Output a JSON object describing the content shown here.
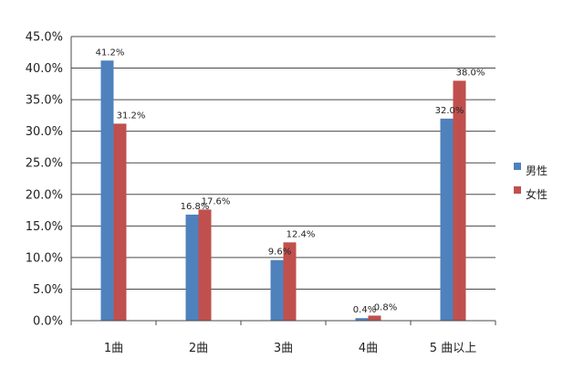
{
  "chart_data": {
    "type": "bar",
    "categories": [
      "1曲",
      "2曲",
      "3曲",
      "4曲",
      "5 曲以上"
    ],
    "series": [
      {
        "name": "男性",
        "color": "#4F81BD",
        "values": [
          41.2,
          16.8,
          9.6,
          0.4,
          32.0
        ],
        "labels": [
          "41.2%",
          "16.8%",
          "9.6%",
          "0.4%",
          "32.0%"
        ]
      },
      {
        "name": "女性",
        "color": "#C0504D",
        "values": [
          31.2,
          17.6,
          12.4,
          0.8,
          38.0
        ],
        "labels": [
          "31.2%",
          "17.6%",
          "12.4%",
          "0.8%",
          "38.0%"
        ]
      }
    ],
    "yticks": [
      "0.0%",
      "5.0%",
      "10.0%",
      "15.0%",
      "20.0%",
      "25.0%",
      "30.0%",
      "35.0%",
      "40.0%",
      "45.0%"
    ],
    "ylim": [
      0,
      45
    ],
    "grid": true,
    "legend_position": "right"
  }
}
